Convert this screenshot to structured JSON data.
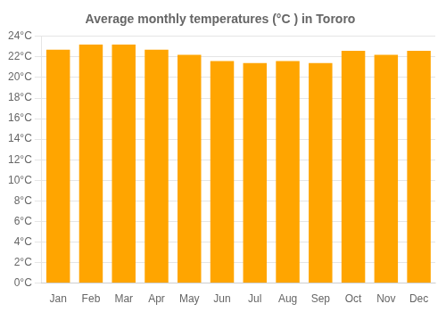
{
  "chart_data": {
    "type": "bar",
    "title": "Average monthly temperatures (°C ) in Tororo",
    "categories": [
      "Jan",
      "Feb",
      "Mar",
      "Apr",
      "May",
      "Jun",
      "Jul",
      "Aug",
      "Sep",
      "Oct",
      "Nov",
      "Dec"
    ],
    "values": [
      22.7,
      23.2,
      23.2,
      22.7,
      22.2,
      21.6,
      21.4,
      21.6,
      21.4,
      22.6,
      22.2,
      22.6
    ],
    "color": "#FFA500",
    "ylim": [
      0,
      24
    ],
    "yticks": [
      {
        "value": 0,
        "label": "0°C"
      },
      {
        "value": 2,
        "label": "2°C"
      },
      {
        "value": 4,
        "label": "4°C"
      },
      {
        "value": 6,
        "label": "6°C"
      },
      {
        "value": 8,
        "label": "8°C"
      },
      {
        "value": 10,
        "label": "10°C"
      },
      {
        "value": 12,
        "label": "12°C"
      },
      {
        "value": 14,
        "label": "14°C"
      },
      {
        "value": 16,
        "label": "16°C"
      },
      {
        "value": 18,
        "label": "18°C"
      },
      {
        "value": 20,
        "label": "20°C"
      },
      {
        "value": 22,
        "label": "22°C"
      },
      {
        "value": 24,
        "label": "24°C"
      }
    ],
    "grid": true
  }
}
